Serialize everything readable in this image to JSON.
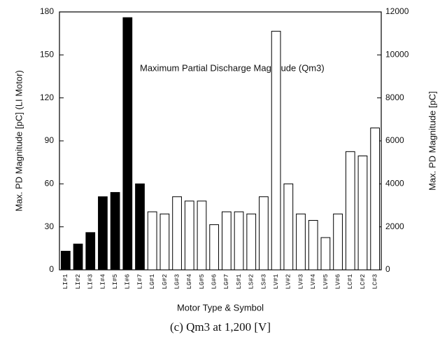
{
  "chart_data": {
    "type": "bar",
    "annotation": "Maximum Partial Discharge Magnitude (Qm3)",
    "x_label": "Motor Type & Symbol",
    "y_label": "Max. PD Magnitude  [pC]  (LI Motor)",
    "y2_label": "Max. PD Magnitude  [pC]",
    "caption": "(c) Qm3 at 1,200 [V]",
    "categories": [
      "LI#1",
      "LI#2",
      "LI#3",
      "LI#4",
      "LI#5",
      "LI#6",
      "LI#7",
      "LG#1",
      "LG#2",
      "LG#3",
      "LG#4",
      "LG#5",
      "LG#6",
      "LG#7",
      "LS#1",
      "LS#2",
      "LS#3",
      "LV#1",
      "LV#2",
      "LV#3",
      "LV#4",
      "LV#5",
      "LV#6",
      "LC#1",
      "LC#2",
      "LC#3"
    ],
    "series": [
      {
        "color": "#000000",
        "values": [
          13,
          18,
          26,
          51,
          54,
          176,
          60,
          null,
          null,
          null,
          null,
          null,
          null,
          null,
          null,
          null,
          null,
          null,
          null,
          null,
          null,
          null,
          null,
          null,
          null,
          null
        ]
      },
      {
        "color": "#ffffff",
        "axis": "y2",
        "values": [
          null,
          null,
          null,
          null,
          null,
          null,
          null,
          2700,
          2600,
          3400,
          3200,
          3200,
          2100,
          2700,
          2700,
          2600,
          3400,
          11100,
          4000,
          2600,
          2300,
          1500,
          2600,
          5500,
          5300,
          6600
        ]
      }
    ],
    "ylim": [
      0,
      180
    ],
    "yticks": [
      0,
      30,
      60,
      90,
      120,
      150,
      180
    ],
    "y2lim": [
      0,
      12000
    ],
    "y2ticks": [
      0,
      2000,
      4000,
      6000,
      8000,
      10000,
      12000
    ]
  }
}
